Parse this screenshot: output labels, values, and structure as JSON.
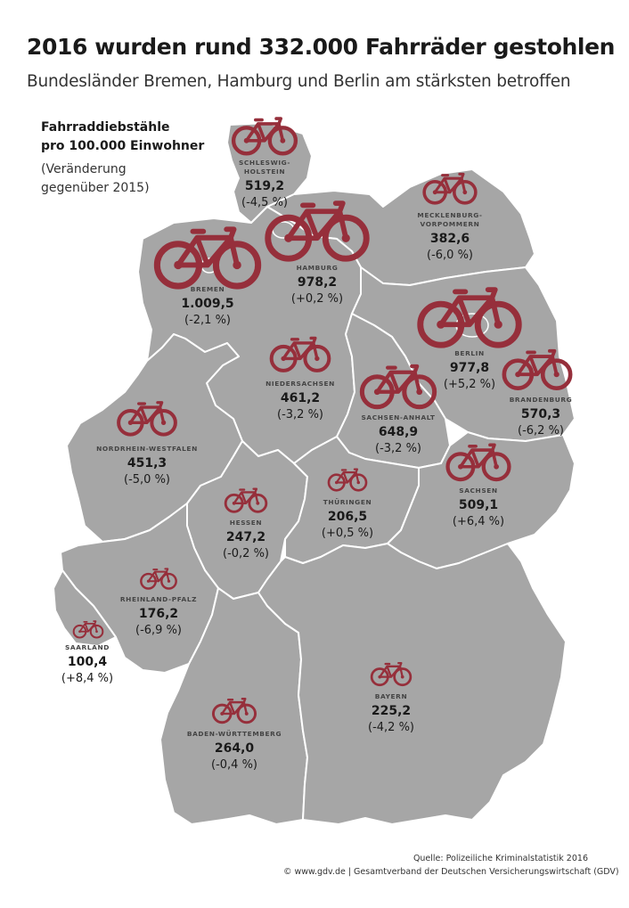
{
  "header": {
    "title": "2016 wurden rund 332.000 Fahrräder gestohlen",
    "subtitle": "Bundesländer Bremen, Hamburg und Berlin am stärksten betroffen"
  },
  "legend": {
    "line1": "Fahrraddiebstähle",
    "line2": "pro 100.000 Einwohner",
    "line3": "(Veränderung",
    "line4": "gegenüber 2015)"
  },
  "colors": {
    "land": "#a6a6a6",
    "border": "#ffffff",
    "bike": "#962f3b",
    "text": "#1a1a1a"
  },
  "icon": "bicycle-icon",
  "regions": [
    {
      "id": "schleswig-holstein",
      "name": [
        "SCHLESWIG-",
        "HOLSTEIN"
      ],
      "value": "519,2",
      "change": "(-4,5 %)",
      "rate": 519.2
    },
    {
      "id": "mecklenburg-vorpommern",
      "name": [
        "MECKLENBURG-",
        "VORPOMMERN"
      ],
      "value": "382,6",
      "change": "(-6,0 %)",
      "rate": 382.6
    },
    {
      "id": "hamburg",
      "name": [
        "HAMBURG"
      ],
      "value": "978,2",
      "change": "(+0,2 %)",
      "rate": 978.2
    },
    {
      "id": "bremen",
      "name": [
        "BREMEN"
      ],
      "value": "1.009,5",
      "change": "(-2,1 %)",
      "rate": 1009.5
    },
    {
      "id": "berlin",
      "name": [
        "BERLIN"
      ],
      "value": "977,8",
      "change": "(+5,2 %)",
      "rate": 977.8
    },
    {
      "id": "niedersachsen",
      "name": [
        "NIEDERSACHSEN"
      ],
      "value": "461,2",
      "change": "(-3,2 %)",
      "rate": 461.2
    },
    {
      "id": "brandenburg",
      "name": [
        "BRANDENBURG"
      ],
      "value": "570,3",
      "change": "(-6,2 %)",
      "rate": 570.3
    },
    {
      "id": "sachsen-anhalt",
      "name": [
        "SACHSEN-ANHALT"
      ],
      "value": "648,9",
      "change": "(-3,2 %)",
      "rate": 648.9
    },
    {
      "id": "nordrhein-westfalen",
      "name": [
        "NORDRHEIN-WESTFALEN"
      ],
      "value": "451,3",
      "change": "(-5,0 %)",
      "rate": 451.3
    },
    {
      "id": "sachsen",
      "name": [
        "SACHSEN"
      ],
      "value": "509,1",
      "change": "(+6,4 %)",
      "rate": 509.1
    },
    {
      "id": "thueringen",
      "name": [
        "THÜRINGEN"
      ],
      "value": "206,5",
      "change": "(+0,5 %)",
      "rate": 206.5
    },
    {
      "id": "hessen",
      "name": [
        "HESSEN"
      ],
      "value": "247,2",
      "change": "(-0,2 %)",
      "rate": 247.2
    },
    {
      "id": "rheinland-pfalz",
      "name": [
        "RHEINLAND-PFALZ"
      ],
      "value": "176,2",
      "change": "(-6,9 %)",
      "rate": 176.2
    },
    {
      "id": "saarland",
      "name": [
        "SAARLAND"
      ],
      "value": "100,4",
      "change": "(+8,4 %)",
      "rate": 100.4
    },
    {
      "id": "bayern",
      "name": [
        "BAYERN"
      ],
      "value": "225,2",
      "change": "(-4,2 %)",
      "rate": 225.2
    },
    {
      "id": "baden-wuerttemberg",
      "name": [
        "BADEN-WÜRTTEMBERG"
      ],
      "value": "264,0",
      "change": "(-0,4 %)",
      "rate": 264.0
    }
  ],
  "footer": {
    "source": "Quelle: Polizeiliche Kriminalstatistik 2016",
    "copyright": "© www.gdv.de | Gesamtverband der Deutschen Versicherungswirtschaft (GDV)"
  }
}
